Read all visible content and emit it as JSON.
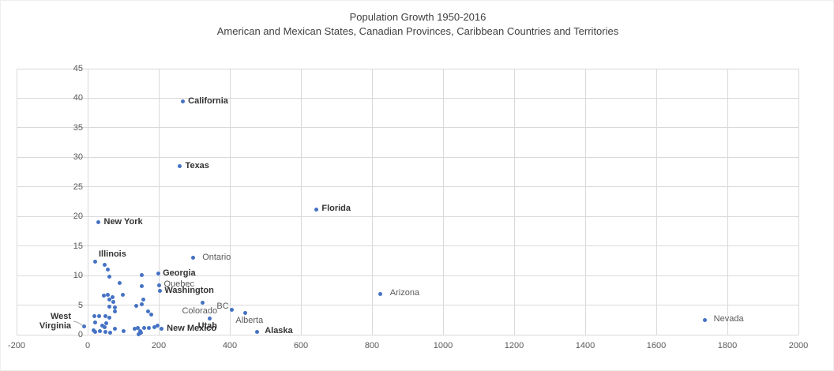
{
  "chart_data": {
    "type": "scatter",
    "title": "Population Growth 1950-2016",
    "subtitle": "American and Mexican States, Canadian Provinces, Caribbean Countries and Territories",
    "xlabel": "",
    "ylabel": "",
    "xlim": [
      -200,
      2000
    ],
    "ylim": [
      0,
      45
    ],
    "xticks": [
      -200,
      0,
      200,
      400,
      600,
      800,
      1000,
      1200,
      1400,
      1600,
      1800,
      2000
    ],
    "yticks": [
      0,
      5,
      10,
      15,
      20,
      25,
      30,
      35,
      40,
      45
    ],
    "grid": true,
    "legend": "none",
    "colors": {
      "dot": "#4472C4",
      "gridline": "#d9d9d9",
      "axis_text": "#595959",
      "title_text": "#404040",
      "label_bold": "#333333",
      "label_regular": "#595959",
      "leader_line": "#a6a6a6"
    },
    "labeled_points": [
      {
        "label": "California",
        "x": 267,
        "y": 39.4,
        "bold": true,
        "pos": "right"
      },
      {
        "label": "Texas",
        "x": 259,
        "y": 28.5,
        "bold": true,
        "pos": "right"
      },
      {
        "label": "Florida",
        "x": 643,
        "y": 21.2,
        "bold": true,
        "pos": "right"
      },
      {
        "label": "New York",
        "x": 30,
        "y": 19.0,
        "bold": true,
        "pos": "right"
      },
      {
        "label": "Ontario",
        "x": 296,
        "y": 13.0,
        "bold": false,
        "pos": "right",
        "dx": 5
      },
      {
        "label": "Illinois",
        "x": 20,
        "y": 12.3,
        "bold": true,
        "pos": "above-right"
      },
      {
        "label": "Georgia",
        "x": 198,
        "y": 10.3,
        "bold": true,
        "pos": "right",
        "dx": -1
      },
      {
        "label": "Quebec",
        "x": 201,
        "y": 8.4,
        "bold": false,
        "pos": "right",
        "dx": -1
      },
      {
        "label": "Washington",
        "x": 203,
        "y": 7.4,
        "bold": true,
        "pos": "right",
        "dx": -1
      },
      {
        "label": "Arizona",
        "x": 824,
        "y": 6.9,
        "bold": false,
        "pos": "right",
        "dx": 5
      },
      {
        "label": "Colorado",
        "x": 324,
        "y": 5.4,
        "bold": false,
        "pos": "below",
        "dx": -4
      },
      {
        "label": "BC",
        "x": 406,
        "y": 4.2,
        "bold": false,
        "pos": "above-left"
      },
      {
        "label": "Alberta",
        "x": 444,
        "y": 3.7,
        "bold": false,
        "pos": "below",
        "dx": 5
      },
      {
        "label": "Utah",
        "x": 344,
        "y": 2.8,
        "bold": true,
        "pos": "below",
        "dx": -3
      },
      {
        "label": "New Mexico",
        "x": 207,
        "y": 1.0,
        "bold": true,
        "pos": "right"
      },
      {
        "label": "Alaska",
        "x": 476,
        "y": 0.5,
        "bold": true,
        "pos": "right",
        "dx": 3
      },
      {
        "label": "Nevada",
        "x": 1737,
        "y": 2.5,
        "bold": false,
        "pos": "right",
        "dx": 4
      },
      {
        "label": "West Virginia",
        "x": -11,
        "y": 1.4,
        "bold": true,
        "pos": "callout-left"
      }
    ],
    "unlabeled_points": [
      [
        48,
        11.8
      ],
      [
        56,
        11.0
      ],
      [
        60,
        9.8
      ],
      [
        90,
        8.7
      ],
      [
        152,
        10.1
      ],
      [
        152,
        8.2
      ],
      [
        45,
        6.6
      ],
      [
        57,
        6.8
      ],
      [
        70,
        6.4
      ],
      [
        98,
        6.7
      ],
      [
        62,
        5.9
      ],
      [
        73,
        5.5
      ],
      [
        60,
        4.8
      ],
      [
        76,
        4.6
      ],
      [
        77,
        3.9
      ],
      [
        18,
        3.2
      ],
      [
        32,
        3.2
      ],
      [
        49,
        3.1
      ],
      [
        61,
        2.9
      ],
      [
        22,
        2.1
      ],
      [
        52,
        1.9
      ],
      [
        40,
        1.6
      ],
      [
        47,
        1.3
      ],
      [
        16,
        0.8
      ],
      [
        22,
        0.45
      ],
      [
        34,
        0.6
      ],
      [
        50,
        0.45
      ],
      [
        64,
        0.3
      ],
      [
        77,
        0.95
      ],
      [
        101,
        0.6
      ],
      [
        137,
        4.9
      ],
      [
        152,
        5.1
      ],
      [
        157,
        6.0
      ],
      [
        170,
        3.9
      ],
      [
        178,
        3.4
      ],
      [
        132,
        1.0
      ],
      [
        142,
        1.2
      ],
      [
        147,
        0.6
      ],
      [
        150,
        0.3
      ],
      [
        144,
        0.1
      ],
      [
        159,
        1.1
      ],
      [
        172,
        1.2
      ],
      [
        187,
        1.3
      ],
      [
        197,
        1.6
      ]
    ]
  }
}
